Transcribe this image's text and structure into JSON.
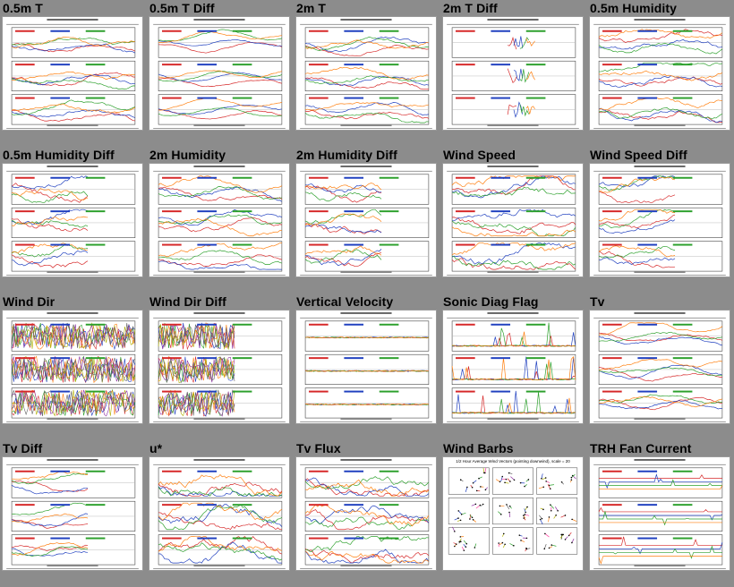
{
  "colors": {
    "background": "#8c8c8c",
    "thumb_bg": "#ffffff",
    "series": [
      "#d62728",
      "#1f3fbf",
      "#2ca02c",
      "#ff7f0e",
      "#b0b000",
      "#8c2ca0",
      "#606060",
      "#ff3fa0"
    ]
  },
  "plots": [
    {
      "title": "0.5m T",
      "kind": "ts3",
      "noise": 0.6
    },
    {
      "title": "0.5m T Diff",
      "kind": "ts3",
      "noise": 0.3
    },
    {
      "title": "2m T",
      "kind": "ts3",
      "noise": 0.6
    },
    {
      "title": "2m T Diff",
      "kind": "sparse3",
      "noise": 0.4
    },
    {
      "title": "0.5m Humidity",
      "kind": "ts3",
      "noise": 0.8
    },
    {
      "title": "0.5m Humidity Diff",
      "kind": "partial3",
      "noise": 1.2
    },
    {
      "title": "2m Humidity",
      "kind": "ts3",
      "noise": 0.8
    },
    {
      "title": "2m Humidity Diff",
      "kind": "partial3",
      "noise": 1.2
    },
    {
      "title": "Wind Speed",
      "kind": "ts3",
      "noise": 1.4
    },
    {
      "title": "Wind Speed Diff",
      "kind": "partial3",
      "noise": 1.0
    },
    {
      "title": "Wind Dir",
      "kind": "dense3",
      "noise": 3.0
    },
    {
      "title": "Wind Dir Diff",
      "kind": "dense3p",
      "noise": 2.5
    },
    {
      "title": "Vertical Velocity",
      "kind": "flat3",
      "noise": 0.4
    },
    {
      "title": "Sonic Diag Flag",
      "kind": "spike3",
      "noise": 1.0
    },
    {
      "title": "Tv",
      "kind": "ts3",
      "noise": 0.5
    },
    {
      "title": "Tv Diff",
      "kind": "partial3",
      "noise": 0.6
    },
    {
      "title": "u*",
      "kind": "ts3",
      "noise": 1.6
    },
    {
      "title": "Tv Flux",
      "kind": "ts3",
      "noise": 1.6
    },
    {
      "title": "Wind Barbs",
      "kind": "barbs",
      "noise": 0.0,
      "subtitle": "1/2 Hour Average Wind Vectors (pointing downwind), scale = 20"
    },
    {
      "title": "TRH Fan Current",
      "kind": "steps3",
      "noise": 0.5
    }
  ]
}
